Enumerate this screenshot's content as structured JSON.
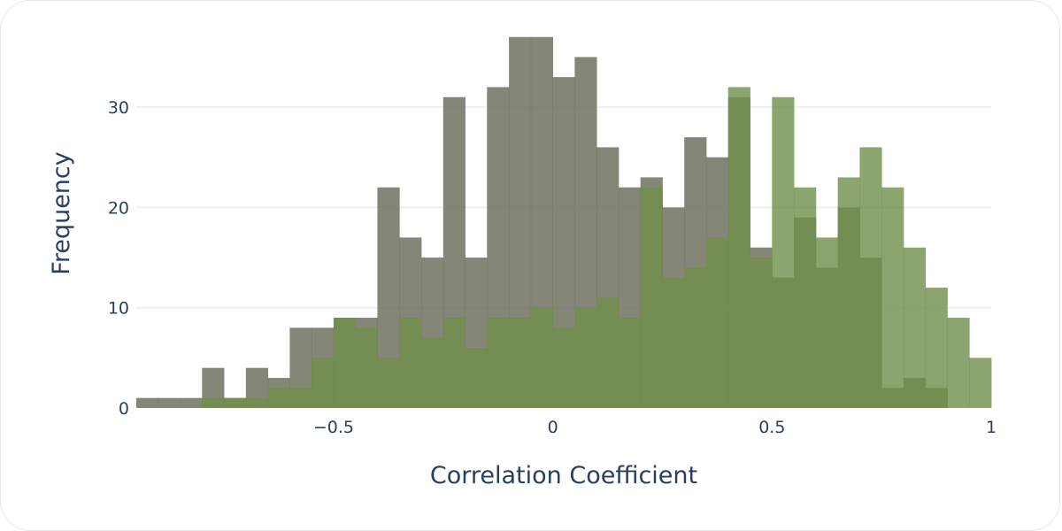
{
  "chart_data": {
    "type": "histogram",
    "barmode": "overlay",
    "xlabel": "Correlation Coefficient",
    "ylabel": "Frequency",
    "xlim": [
      -0.95,
      1.0
    ],
    "ylim": [
      0,
      37
    ],
    "bin_width": 0.05,
    "bin_start": -0.95,
    "x_ticks": [
      {
        "value": -0.5,
        "label": "−0.5"
      },
      {
        "value": 0,
        "label": "0"
      },
      {
        "value": 0.5,
        "label": "0.5"
      },
      {
        "value": 1,
        "label": "1"
      }
    ],
    "y_ticks": [
      {
        "value": 0,
        "label": "0"
      },
      {
        "value": 10,
        "label": "10"
      },
      {
        "value": 20,
        "label": "20"
      },
      {
        "value": 30,
        "label": "30"
      }
    ],
    "grid": true,
    "legend": false,
    "series": [
      {
        "color": "#6f715f",
        "values": [
          1,
          1,
          1,
          4,
          1,
          4,
          3,
          8,
          8,
          9,
          9,
          22,
          17,
          15,
          31,
          15,
          32,
          37,
          37,
          33,
          35,
          26,
          22,
          23,
          20,
          27,
          25,
          31,
          16,
          13,
          19,
          14,
          20,
          15,
          2,
          3,
          2,
          0,
          0
        ]
      },
      {
        "color": "#6f8f4a",
        "values": [
          0,
          0,
          0,
          1,
          1,
          1,
          2,
          2,
          5,
          9,
          8,
          5,
          9,
          7,
          9,
          6,
          9,
          9,
          10,
          8,
          10,
          11,
          9,
          22,
          13,
          14,
          17,
          32,
          15,
          31,
          22,
          17,
          23,
          26,
          22,
          16,
          12,
          9,
          5
        ]
      }
    ]
  }
}
